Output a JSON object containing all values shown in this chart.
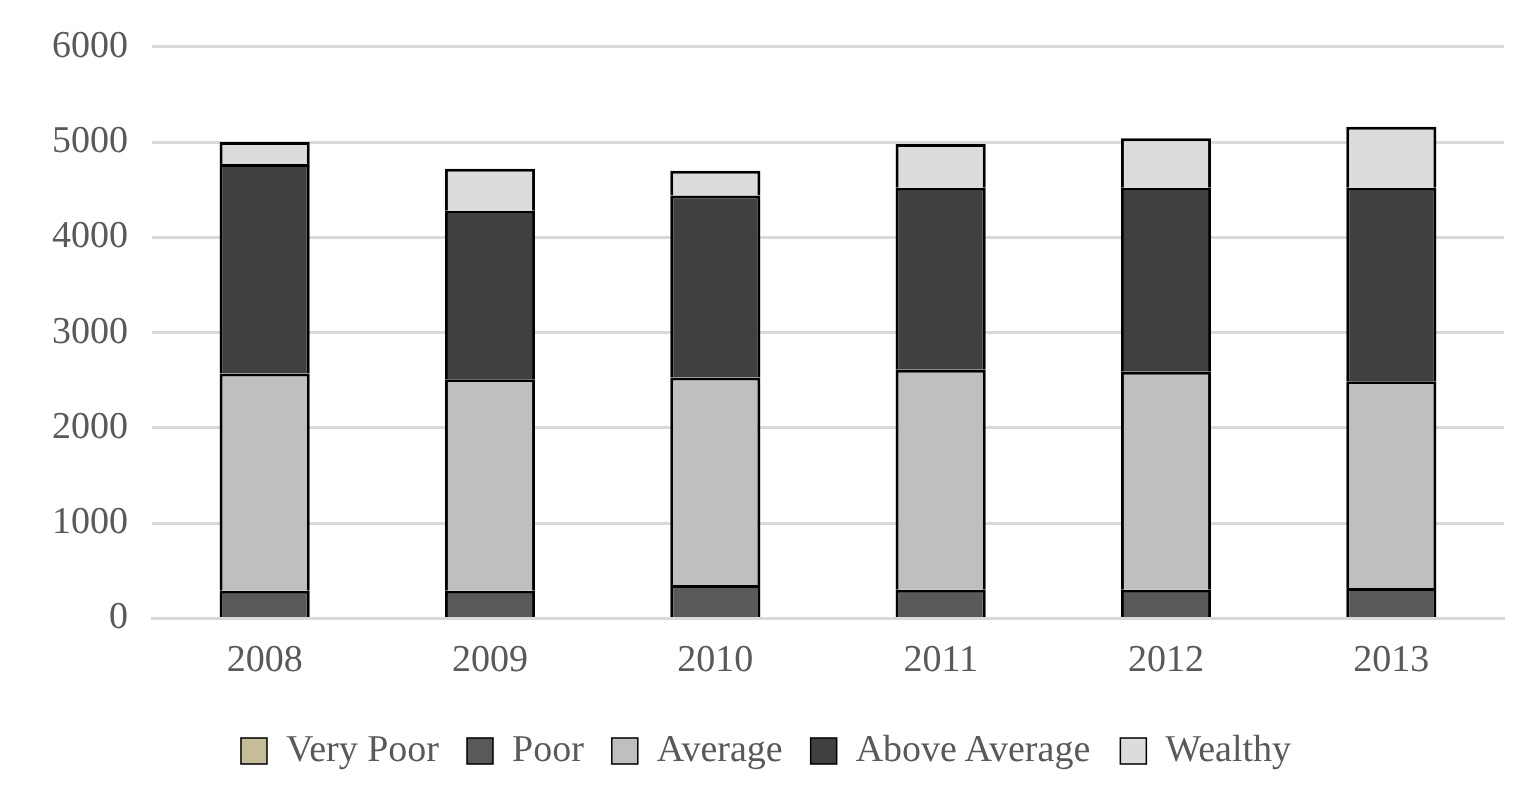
{
  "chart_data": {
    "type": "bar",
    "stacked": true,
    "categories": [
      "2008",
      "2009",
      "2010",
      "2011",
      "2012",
      "2013"
    ],
    "series": [
      {
        "name": "Very Poor",
        "color": "#c4bd97",
        "values": [
          0,
          0,
          0,
          0,
          0,
          0
        ]
      },
      {
        "name": "Poor",
        "color": "#595959",
        "values": [
          290,
          290,
          350,
          300,
          300,
          320
        ]
      },
      {
        "name": "Average",
        "color": "#bfbfbf",
        "values": [
          2280,
          2220,
          2180,
          2310,
          2290,
          2170
        ]
      },
      {
        "name": "Above Average",
        "color": "#404040",
        "values": [
          2200,
          1770,
          1910,
          1910,
          1930,
          2030
        ]
      },
      {
        "name": "Wealthy",
        "color": "#dcdcdc",
        "values": [
          230,
          440,
          260,
          460,
          520,
          640
        ]
      }
    ],
    "ylim": [
      0,
      6000
    ],
    "yticks": [
      0,
      1000,
      2000,
      3000,
      4000,
      5000,
      6000
    ],
    "grid": "y",
    "legend": "bottom"
  }
}
